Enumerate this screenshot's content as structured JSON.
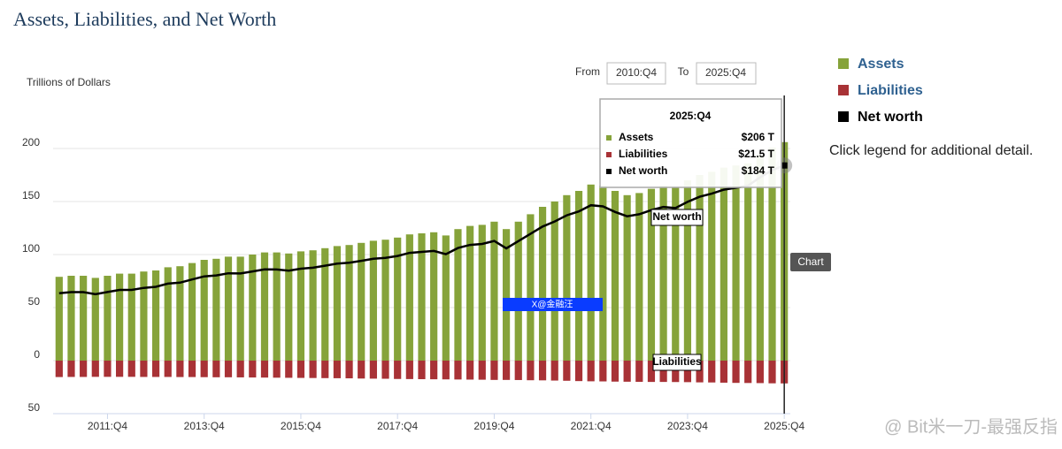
{
  "chart_data": {
    "type": "bar",
    "title": "Assets, Liabilities, and Net Worth",
    "y_label": "Trillions of Dollars",
    "range_selector": {
      "from_label": "From",
      "from": "2010:Q4",
      "to_label": "To",
      "to": "2025:Q4"
    },
    "legend_note": "Click legend for additional detail.",
    "button": "Chart",
    "annotations": [
      "Net worth",
      "Liabilities"
    ],
    "watermarks": [
      "X@金融汪",
      "@ Bit米一刀-最强反指"
    ],
    "categories": [
      null,
      null,
      null,
      null,
      "2011:Q4",
      null,
      null,
      null,
      null,
      null,
      null,
      null,
      "2013:Q4",
      null,
      null,
      null,
      null,
      null,
      null,
      null,
      "2015:Q4",
      null,
      null,
      null,
      null,
      null,
      null,
      null,
      "2017:Q4",
      null,
      null,
      null,
      null,
      null,
      null,
      null,
      "2019:Q4",
      null,
      null,
      null,
      null,
      null,
      null,
      null,
      "2021:Q4",
      null,
      null,
      null,
      null,
      null,
      null,
      null,
      "2023:Q4",
      null,
      null,
      null,
      null,
      null,
      null,
      null,
      "2025:Q4"
    ],
    "ylim": [
      -50,
      250
    ],
    "yticks": [
      {
        "value": -50,
        "label": "50"
      },
      0,
      50,
      100,
      150,
      200
    ],
    "grid": true,
    "series": [
      {
        "name": "Assets",
        "color": "#86a33a",
        "kind": "bar",
        "values": [
          79,
          80,
          80,
          78,
          80,
          82,
          82,
          84,
          85,
          88,
          89,
          92,
          95,
          96,
          98,
          98,
          100,
          102,
          102,
          101,
          103,
          104,
          106,
          108,
          109,
          111,
          113,
          114,
          116,
          119,
          120,
          121,
          118,
          124,
          127,
          128,
          131,
          124,
          131,
          138,
          145,
          150,
          156,
          160,
          166,
          165,
          160,
          156,
          158,
          162,
          165,
          164,
          170,
          175,
          178,
          182,
          184,
          186,
          194,
          201,
          206
        ],
        "value_labels": [
          null,
          null,
          null,
          null,
          null,
          null,
          null,
          null,
          null,
          null,
          null,
          null,
          null,
          null,
          null,
          null,
          null,
          null,
          null,
          null,
          null,
          null,
          null,
          null,
          null,
          null,
          null,
          null,
          null,
          null,
          null,
          null,
          null,
          null,
          null,
          null,
          null,
          null,
          null,
          null,
          null,
          null,
          null,
          null,
          null,
          null,
          null,
          null,
          null,
          null,
          null,
          null,
          null,
          null,
          null,
          null,
          null,
          null,
          null,
          null,
          "$206 T"
        ]
      },
      {
        "name": "Liabilities",
        "color": "#a83236",
        "kind": "bar",
        "values": [
          -15.5,
          -15.4,
          -15.4,
          -15.3,
          -15.3,
          -15.3,
          -15.3,
          -15.4,
          -15.4,
          -15.4,
          -15.5,
          -15.5,
          -15.6,
          -15.7,
          -15.7,
          -15.8,
          -15.9,
          -16.0,
          -16.1,
          -16.2,
          -16.3,
          -16.4,
          -16.5,
          -16.6,
          -16.7,
          -16.9,
          -17.0,
          -17.1,
          -17.3,
          -17.4,
          -17.5,
          -17.6,
          -17.7,
          -17.8,
          -17.9,
          -18.0,
          -18.2,
          -18.2,
          -18.3,
          -18.5,
          -18.6,
          -18.8,
          -19.0,
          -19.3,
          -19.5,
          -19.6,
          -19.8,
          -19.9,
          -20.0,
          -20.1,
          -20.1,
          -20.2,
          -20.3,
          -20.5,
          -20.6,
          -20.8,
          -21.0,
          -21.1,
          -21.2,
          -21.4,
          -21.5
        ],
        "value_labels": [
          null,
          null,
          null,
          null,
          null,
          null,
          null,
          null,
          null,
          null,
          null,
          null,
          null,
          null,
          null,
          null,
          null,
          null,
          null,
          null,
          null,
          null,
          null,
          null,
          null,
          null,
          null,
          null,
          null,
          null,
          null,
          null,
          null,
          null,
          null,
          null,
          null,
          null,
          null,
          null,
          null,
          null,
          null,
          null,
          null,
          null,
          null,
          null,
          null,
          null,
          null,
          null,
          null,
          null,
          null,
          null,
          null,
          null,
          null,
          null,
          "$21.5 T"
        ]
      },
      {
        "name": "Net worth",
        "color": "#000000",
        "kind": "line",
        "values": [
          63.5,
          64.6,
          64.6,
          62.7,
          64.7,
          66.7,
          66.7,
          68.6,
          69.6,
          72.6,
          73.5,
          76.5,
          79.4,
          80.3,
          82.3,
          82.2,
          84.1,
          86,
          85.9,
          84.8,
          86.7,
          87.6,
          89.5,
          91.4,
          92.3,
          94.1,
          96,
          96.9,
          98.7,
          101.6,
          102.5,
          103.4,
          100.3,
          106.2,
          109.1,
          110,
          112.8,
          105.8,
          112.7,
          119.5,
          126.4,
          131.2,
          137,
          140.7,
          146.5,
          145.4,
          140.2,
          136.1,
          138,
          141.9,
          144.9,
          143.8,
          149.7,
          154.5,
          157.4,
          161.2,
          163,
          164.9,
          172.8,
          179.6,
          184
        ],
        "value_labels": [
          null,
          null,
          null,
          null,
          null,
          null,
          null,
          null,
          null,
          null,
          null,
          null,
          null,
          null,
          null,
          null,
          null,
          null,
          null,
          null,
          null,
          null,
          null,
          null,
          null,
          null,
          null,
          null,
          null,
          null,
          null,
          null,
          null,
          null,
          null,
          null,
          null,
          null,
          null,
          null,
          null,
          null,
          null,
          null,
          null,
          null,
          null,
          null,
          null,
          null,
          null,
          null,
          null,
          null,
          null,
          null,
          null,
          null,
          null,
          null,
          "$184 T"
        ]
      }
    ],
    "tooltip_index": 60
  }
}
